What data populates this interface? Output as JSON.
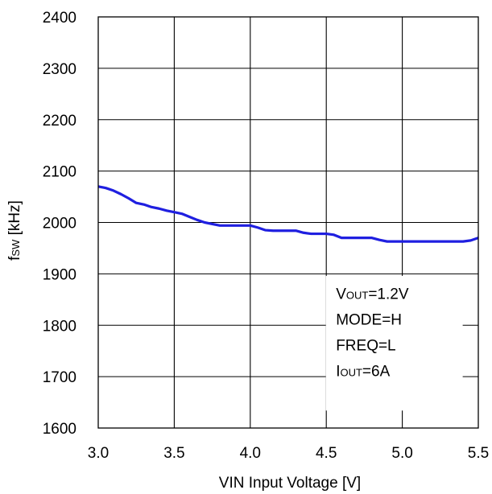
{
  "chart_data": {
    "type": "line",
    "title": "",
    "xlabel": "VIN Input Voltage [V]",
    "ylabel": {
      "main": "f",
      "sub": "SW",
      "unit": " [kHz]"
    },
    "xlim": [
      3.0,
      5.5
    ],
    "ylim": [
      1600,
      2400
    ],
    "x_ticks": [
      3.0,
      3.5,
      4.0,
      4.5,
      5.0,
      5.5
    ],
    "x_tick_labels": [
      "3.0",
      "3.5",
      "4.0",
      "4.5",
      "5.0",
      "5.5"
    ],
    "y_ticks": [
      1600,
      1700,
      1800,
      1900,
      2000,
      2100,
      2200,
      2300,
      2400
    ],
    "y_tick_labels": [
      "1600",
      "1700",
      "1800",
      "1900",
      "2000",
      "2100",
      "2200",
      "2300",
      "2400"
    ],
    "grid": true,
    "series": [
      {
        "color": "#1f1fe0",
        "x": [
          3.0,
          3.05,
          3.1,
          3.15,
          3.2,
          3.25,
          3.3,
          3.35,
          3.4,
          3.45,
          3.5,
          3.55,
          3.6,
          3.65,
          3.7,
          3.75,
          3.8,
          3.85,
          3.9,
          3.95,
          4.0,
          4.05,
          4.1,
          4.15,
          4.2,
          4.25,
          4.3,
          4.35,
          4.4,
          4.45,
          4.5,
          4.55,
          4.6,
          4.65,
          4.7,
          4.75,
          4.8,
          4.85,
          4.9,
          4.95,
          5.0,
          5.05,
          5.1,
          5.15,
          5.2,
          5.25,
          5.3,
          5.35,
          5.4,
          5.45,
          5.5
        ],
        "y": [
          2070,
          2067,
          2062,
          2055,
          2047,
          2038,
          2035,
          2030,
          2027,
          2023,
          2020,
          2017,
          2011,
          2005,
          2000,
          1997,
          1994,
          1994,
          1994,
          1994,
          1994,
          1990,
          1985,
          1984,
          1984,
          1984,
          1984,
          1980,
          1978,
          1978,
          1978,
          1976,
          1970,
          1970,
          1970,
          1970,
          1970,
          1966,
          1963,
          1963,
          1963,
          1963,
          1963,
          1963,
          1963,
          1963,
          1963,
          1963,
          1963,
          1965,
          1970
        ]
      }
    ],
    "annotations": {
      "vout_main": "V",
      "vout_sub": "OUT",
      "vout_val": "=1.2V",
      "mode": "MODE=H",
      "freq": "FREQ=L",
      "iout_main": "I",
      "iout_sub": "OUT",
      "iout_val": "=6A"
    },
    "legend": "none"
  }
}
